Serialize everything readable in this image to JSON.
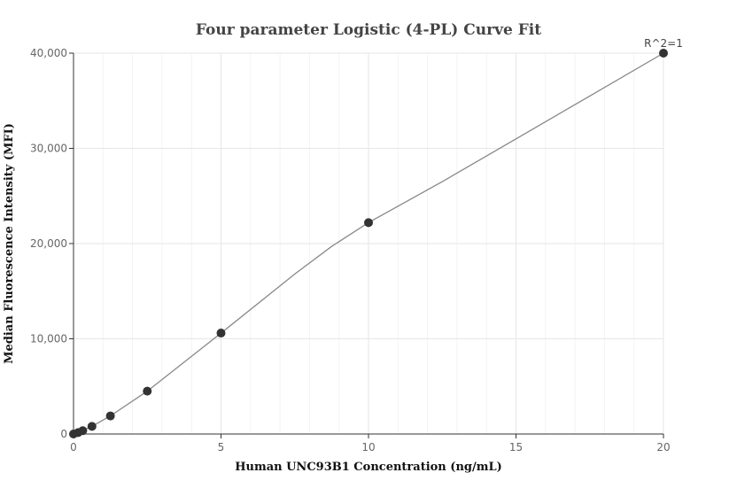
{
  "chart_data": {
    "type": "scatter",
    "title": "Four parameter Logistic (4-PL) Curve Fit",
    "xlabel": "Human UNC93B1 Concentration (ng/mL)",
    "ylabel": "Median Fluorescence Intensity (MFI)",
    "xlim": [
      0,
      20
    ],
    "ylim": [
      0,
      40000
    ],
    "x_ticks": [
      0,
      5,
      10,
      15,
      20
    ],
    "x_tick_labels": [
      "0",
      "5",
      "10",
      "15",
      "20"
    ],
    "y_ticks": [
      0,
      10000,
      20000,
      30000,
      40000
    ],
    "y_tick_labels": [
      "0",
      "10,000",
      "20,000",
      "30,000",
      "40,000"
    ],
    "grid": true,
    "series": [
      {
        "points": [
          {
            "x": 0,
            "y": 0
          },
          {
            "x": 0.156,
            "y": 150
          },
          {
            "x": 0.3125,
            "y": 350
          },
          {
            "x": 0.625,
            "y": 800
          },
          {
            "x": 1.25,
            "y": 1900
          },
          {
            "x": 2.5,
            "y": 4500
          },
          {
            "x": 5,
            "y": 10600
          },
          {
            "x": 10,
            "y": 22200
          },
          {
            "x": 20,
            "y": 40000
          }
        ],
        "color": "#333333"
      }
    ],
    "fit_curve": {
      "points": [
        {
          "x": 0,
          "y": 0
        },
        {
          "x": 0.625,
          "y": 800
        },
        {
          "x": 1.25,
          "y": 1900
        },
        {
          "x": 2.5,
          "y": 4500
        },
        {
          "x": 5,
          "y": 10600
        },
        {
          "x": 7.5,
          "y": 16800
        },
        {
          "x": 8.75,
          "y": 19700
        },
        {
          "x": 10,
          "y": 22200
        },
        {
          "x": 12.5,
          "y": 26500
        },
        {
          "x": 15,
          "y": 31000
        },
        {
          "x": 17.5,
          "y": 35500
        },
        {
          "x": 20,
          "y": 40000
        }
      ],
      "color": "#888888"
    },
    "annotation": "R^2=1"
  }
}
